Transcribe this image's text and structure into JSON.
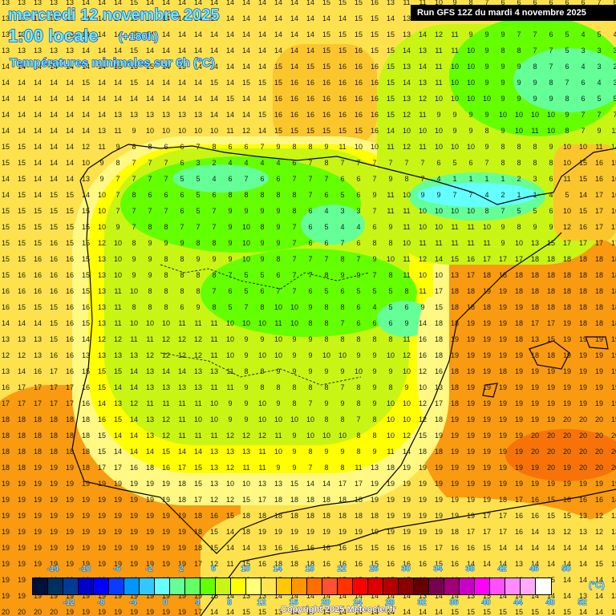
{
  "header": {
    "date": "mercredi 12 novembre 2025",
    "hour": "1:00 locale",
    "offset": "(+180h)",
    "variable": "Températures minimales sur 6h (°C)",
    "run": "Run GFS 12Z du mardi 4 novembre 2025"
  },
  "legend": {
    "unit": "(°C)",
    "top_ticks": [
      "-14",
      "-10",
      "-6",
      "-2",
      "2",
      "6",
      "10",
      "14",
      "18",
      "22",
      "26",
      "30",
      "34",
      "38",
      "42",
      "46",
      "50"
    ],
    "bottom_ticks": [
      "-12",
      "-8",
      "-4",
      "0",
      "4",
      "8",
      "12",
      "16",
      "20",
      "24",
      "28",
      "32",
      "36",
      "40",
      "44",
      "48",
      "52"
    ],
    "colors": [
      "#00103c",
      "#003060",
      "#003c96",
      "#0000c8",
      "#0000ff",
      "#0a3cff",
      "#0096ff",
      "#32c8ff",
      "#64ffff",
      "#64ff96",
      "#64ff64",
      "#64ff00",
      "#c8f514",
      "#ffff00",
      "#ffff78",
      "#ffe650",
      "#ffc800",
      "#ff9600",
      "#ff6e00",
      "#ff5032",
      "#ff3200",
      "#ff0000",
      "#dc0000",
      "#b40000",
      "#8c0000",
      "#640000",
      "#780050",
      "#a00078",
      "#c800c8",
      "#ff00ff",
      "#ff50ff",
      "#ff8cff",
      "#ffaaff",
      "#ffffff"
    ]
  },
  "footer": {
    "copyright": "Copyright 2025 Meteociel.fr"
  },
  "map": {
    "colors": {
      "sea_14": "#fde24e",
      "sea_16": "#fbc62c",
      "sea_19": "#f99a10",
      "sea_20": "#f7730a",
      "land_12": "#fff883",
      "land_10": "#ffff00",
      "land_8": "#c8f514",
      "land_6": "#64ff00",
      "land_4": "#64ff96",
      "land_1": "#64ffff"
    },
    "grid_rows": [
      "13 13 13 13 13 14 14 14 15 14 14 14 14 14 14 14 14 14 14 14 15 15 15 16 13 11 11 10 9 8 7 6 6 6 6 6 6 7 6",
      "13 13 13 13 13 14 14 14 15 14 14 14 14 14 14 14 14 14 14 14 14 14 15 15 14 13 12 11 10 9 9 7 7 5 5 4 6 6 5",
      "13 13 13 13 13 14 14 14 15 14 14 14 14 14 14 14 14 14 14 14 15 15 15 15 15 13 14 12 11 9 9 9 7 7 6 5 4 5 4",
      "13 13 13 13 13 14 14 14 15 14 14 14 14 14 14 14 14 14 14 14 15 15 16 15 15 14 13 11 11 10 9 8 8 7 7 5 3 3 3",
      "14 14 14 14 14 14 14 15 15 15 14 15 14 14 14 14 14 15 14 15 15 16 16 16 15 13 14 11 10 10 9 9 9 8 7 6 4 3 2",
      "14 14 14 14 14 15 14 14 15 14 14 14 14 15 14 15 15 15 16 16 16 16 16 16 15 14 13 11 10 10 9 9 9 9 8 7 6 4 3",
      "14 14 14 14 14 14 14 14 14 14 14 14 14 14 15 14 14 16 16 16 16 16 16 16 15 13 12 10 10 10 10 9 9 9 9 8 6 5 5",
      "14 14 14 14 14 14 14 13 13 13 13 13 13 14 14 14 15 16 16 16 16 16 16 16 15 12 11 9 9 9 9 10 10 10 10 9 7 7 7",
      "14 14 14 14 14 14 13 11 9 10 10 10 10 10 11 12 14 15 15 15 15 15 15 16 14 10 10 10 9 9 8 9 10 11 10 8 7 9 11",
      "15 15 14 14 14 12 11 9 8 8 6 6 7 8 6 6 7 9 8 8 9 11 10 10 11 12 11 10 10 10 9 8 8 8 9 10 10 11 14",
      "15 15 14 14 14 10 9 8 7 7 7 6 3 2 4 4 4 4 6 7 8 7 7 7 7 7 7 6 5 6 7 8 8 8 8 10 15 16 15",
      "14 15 14 14 14 13 9 7 7 7 7 5 5 4 6 7 6 6 7 7 7 6 6 7 9 8 7 4 1 1 1 1 2 3 6 11 15 16 16",
      "14 15 14 15 15 14 10 7 8 6 6 6 5 6 8 8 8 8 8 7 6 5 6 9 11 10 9 9 7 7 4 2 1 1 4 5 14 17 16",
      "15 15 15 15 15 15 10 7 7 7 7 6 5 7 9 9 9 9 8 6 4 3 3 7 11 11 10 10 10 10 8 7 5 5 6 10 15 17 16",
      "15 15 15 15 15 15 10 9 7 8 8 7 7 7 9 10 8 9 7 6 5 4 4 6 9 11 10 10 11 11 10 9 8 9 9 12 16 17 17",
      "15 15 15 16 15 15 12 10 8 9 9 9 8 8 9 10 9 9 7 6 6 7 6 8 8 10 11 11 11 11 11 9 10 13 15 17 17 17 17",
      "15 15 16 16 16 15 13 10 9 9 8 8 9 9 9 10 9 8 7 7 7 8 7 9 10 11 12 14 15 16 17 17 17 18 18 18 18 18 18",
      "15 16 16 16 16 15 13 10 9 9 8 8 8 8 7 5 5 6 7 7 8 9 9 7 8 11 10 10 13 17 18 18 18 18 18 18 18 18 18",
      "16 16 16 16 16 15 13 11 10 8 8 8 8 7 6 5 6 7 7 6 5 6 5 5 5 8 11 17 18 18 19 19 18 18 18 18 18 18 18",
      "16 15 15 15 16 16 13 11 8 8 8 6 9 8 5 7 8 10 10 9 8 8 6 4 5 6 9 15 18 18 18 19 19 18 18 18 18 18 18",
      "14 14 14 15 16 15 13 11 10 10 10 11 11 11 10 10 10 11 10 8 8 7 6 6 6 9 14 18 18 19 19 19 18 17 17 19 18 18 18",
      "13 13 13 15 16 14 12 12 11 11 12 12 12 11 10 9 9 10 9 9 8 8 8 8 8 11 16 18 19 19 19 19 18 13 15 19 19 19 19",
      "12 12 13 16 16 13 13 13 13 12 12 12 12 11 10 9 10 10 9 9 10 10 9 9 10 12 16 18 19 19 19 19 19 18 18 19 19 19 19",
      "13 14 16 17 16 15 15 15 14 13 14 14 13 13 11 8 8 9 9 9 9 9 10 9 9 10 12 16 18 19 19 18 19 19 19 19 19 19 19",
      "16 17 17 17 17 16 15 14 14 13 13 13 13 11 11 9 8 8 8 8 8 7 8 9 8 9 10 13 18 19 19 19 19 19 19 19 19 19 19",
      "17 17 17 17 17 16 14 13 12 11 11 11 11 10 9 9 10 9 8 7 9 9 8 9 10 10 12 17 18 19 19 19 19 19 19 19 19 19 19",
      "18 18 18 18 18 18 16 15 14 13 12 11 10 10 9 9 10 10 10 10 8 8 7 8 10 10 12 18 19 19 19 19 19 19 19 20 20 20 19",
      "18 18 18 18 18 18 15 14 14 13 12 11 11 11 12 12 12 11 9 10 10 10 8 8 10 12 15 19 19 19 19 19 19 20 20 20 20 20 20",
      "18 18 18 18 18 18 15 14 14 14 15 14 14 13 13 13 11 10 9 8 9 9 8 9 11 14 18 18 19 19 19 19 19 20 20 20 20 20 20",
      "18 18 19 19 19 18 17 17 16 18 16 17 15 13 12 11 11 9 9 7 8 8 11 13 18 19 19 19 19 19 19 19 19 19 20 19 20 20 20",
      "19 19 19 19 19 19 19 19 19 19 19 18 15 13 10 10 13 13 15 14 14 17 17 19 19 19 19 19 19 19 19 19 19 19 19 19 19 19 19",
      "19 19 19 19 19 19 19 19 19 19 19 18 17 12 12 15 17 18 18 18 18 18 18 19 19 19 19 19 19 19 19 18 17 16 15 16 16 16 14",
      "19 19 19 19 19 19 19 19 19 19 19 19 18 16 15 18 18 18 18 18 18 18 18 18 19 19 19 19 19 19 17 17 16 16 15 15 13 12 12",
      "19 19 19 19 19 19 19 19 19 19 19 19 18 15 14 18 19 19 19 19 19 19 19 19 19 19 19 19 18 17 17 17 16 14 13 12 13 12 13",
      "19 19 19 19 19 19 19 19 19 19 19 19 18 15 14 14 13 16 16 16 16 16 15 15 16 16 15 17 16 16 15 14 14 14 14 14 14 14 15",
      "19 19 19 19 19 19 19 19 19 19 19 19 17 12 11 15 16 18 18 18 16 16 16 15 16 16 16 15 16 14 14 14 13 14 14 14 14 15 15",
      "19 19 19 19 19 19 19 19 19 19 19 19 19 15 14 13 13 15 14 15 15 15 15 15 15 15 16 16 16 16 14 14 13 14 15 14 14 14 14",
      "19 19 19 19 19 19 19 19 19 19 19 19 19 15 14 13 13 14 14 14 14 14 14 14 14 14 13 14 14 13 15 14 14 14 14 14 13 14 13",
      "20 20 20 20 19 19 19 19 19 19 19 19 17 14 14 15 15 13 14 14 14 14 14 14 14 14 14 14 15 15 15 15 15 15 14 15 14 14 15"
    ]
  }
}
